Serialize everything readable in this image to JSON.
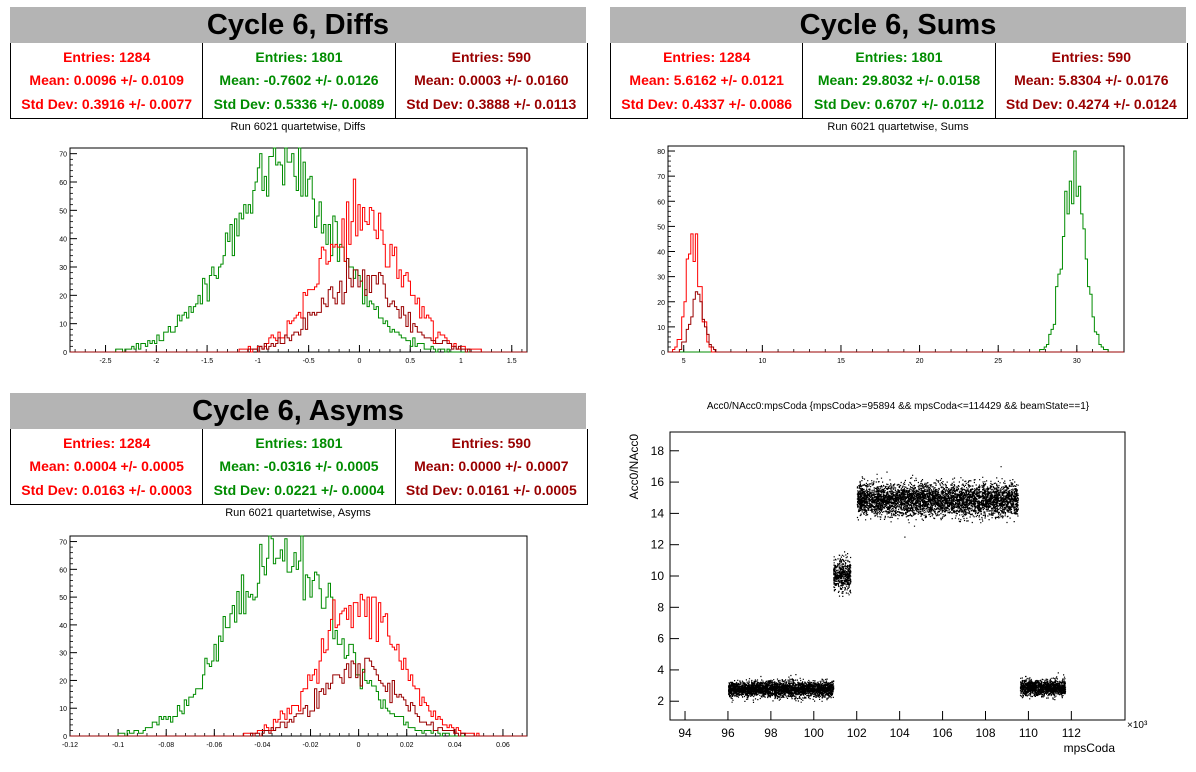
{
  "panels": {
    "diffs": {
      "title": "Cycle 6, Diffs",
      "subtitle": "Run 6021 quartetwise, Diffs",
      "stats": [
        {
          "entries": "Entries: 1284",
          "mean": "Mean: 0.0096 +/- 0.0109",
          "std": "Std Dev: 0.3916 +/- 0.0077",
          "color": "#ff0000"
        },
        {
          "entries": "Entries: 1801",
          "mean": "Mean: -0.7602 +/- 0.0126",
          "std": "Std Dev: 0.5336 +/- 0.0089",
          "color": "#008c00"
        },
        {
          "entries": "Entries: 590",
          "mean": "Mean: 0.0003 +/- 0.0160",
          "std": "Std Dev: 0.3888 +/- 0.0113",
          "color": "#990000"
        }
      ]
    },
    "sums": {
      "title": "Cycle 6, Sums",
      "subtitle": "Run 6021 quartetwise, Sums",
      "stats": [
        {
          "entries": "Entries: 1284",
          "mean": "Mean: 5.6162 +/- 0.0121",
          "std": "Std Dev: 0.4337 +/- 0.0086",
          "color": "#ff0000"
        },
        {
          "entries": "Entries: 1801",
          "mean": "Mean: 29.8032 +/- 0.0158",
          "std": "Std Dev: 0.6707 +/- 0.0112",
          "color": "#008c00"
        },
        {
          "entries": "Entries: 590",
          "mean": "Mean: 5.8304 +/- 0.0176",
          "std": "Std Dev: 0.4274 +/- 0.0124",
          "color": "#990000"
        }
      ]
    },
    "asyms": {
      "title": "Cycle 6, Asyms",
      "subtitle": "Run 6021 quartetwise, Asyms",
      "stats": [
        {
          "entries": "Entries: 1284",
          "mean": "Mean: 0.0004 +/- 0.0005",
          "std": "Std Dev: 0.0163 +/- 0.0003",
          "color": "#ff0000"
        },
        {
          "entries": "Entries: 1801",
          "mean": "Mean: -0.0316 +/- 0.0005",
          "std": "Std Dev: 0.0221 +/- 0.0004",
          "color": "#008c00"
        },
        {
          "entries": "Entries: 590",
          "mean": "Mean: 0.0000 +/- 0.0007",
          "std": "Std Dev: 0.0161 +/- 0.0005",
          "color": "#990000"
        }
      ]
    },
    "scatter": {
      "title": "Acc0/NAcc0:mpsCoda {mpsCoda>=95894 && mpsCoda<=114429 && beamState==1}"
    }
  },
  "chart_data": [
    {
      "type": "histogram",
      "title": "Run 6021 quartetwise, Diffs",
      "xlim": [
        -2.85,
        1.65
      ],
      "ylim": [
        0,
        72
      ],
      "xticks": [
        -2.5,
        -2,
        -1.5,
        -1,
        -0.5,
        0,
        0.5,
        1,
        1.5
      ],
      "yticks": [
        0,
        10,
        20,
        30,
        40,
        50,
        60,
        70
      ],
      "series": [
        {
          "color": "#008c00",
          "entries": 1801,
          "mean": -0.7602,
          "std": 0.5336,
          "peak": 68
        },
        {
          "color": "#ff0000",
          "entries": 1284,
          "mean": 0.0096,
          "std": 0.3916,
          "peak": 50
        },
        {
          "color": "#990000",
          "entries": 590,
          "mean": 0.0003,
          "std": 0.3888,
          "peak": 27
        }
      ]
    },
    {
      "type": "histogram",
      "title": "Run 6021 quartetwise, Sums",
      "xlim": [
        4.0,
        33.0
      ],
      "ylim": [
        0,
        82
      ],
      "xticks": [
        5,
        10,
        15,
        20,
        25,
        30
      ],
      "yticks": [
        0,
        10,
        20,
        30,
        40,
        50,
        60,
        70,
        80
      ],
      "series": [
        {
          "color": "#008c00",
          "entries": 1801,
          "mean": 29.8032,
          "std": 0.6707,
          "peak": 79
        },
        {
          "color": "#ff0000",
          "entries": 1284,
          "mean": 5.6162,
          "std": 0.4337,
          "peak": 49
        },
        {
          "color": "#990000",
          "entries": 590,
          "mean": 5.8304,
          "std": 0.4274,
          "peak": 22
        }
      ]
    },
    {
      "type": "histogram",
      "title": "Run 6021 quartetwise, Asyms",
      "xlim": [
        -0.12,
        0.07
      ],
      "ylim": [
        0,
        72
      ],
      "xticks": [
        -0.12,
        -0.1,
        -0.08,
        -0.06,
        -0.04,
        -0.02,
        0,
        0.02,
        0.04,
        0.06
      ],
      "yticks": [
        0,
        10,
        20,
        30,
        40,
        50,
        60,
        70
      ],
      "series": [
        {
          "color": "#008c00",
          "entries": 1801,
          "mean": -0.0316,
          "std": 0.0221,
          "peak": 70
        },
        {
          "color": "#ff0000",
          "entries": 1284,
          "mean": 0.0004,
          "std": 0.0163,
          "peak": 50
        },
        {
          "color": "#990000",
          "entries": 590,
          "mean": 0.0,
          "std": 0.0161,
          "peak": 26
        }
      ]
    },
    {
      "type": "scatter",
      "title": "Acc0/NAcc0:mpsCoda {mpsCoda>=95894 && mpsCoda<=114429 && beamState==1}",
      "xlabel": "mpsCoda",
      "ylabel": "Acc0/NAcc0",
      "x_multiplier": "×10³",
      "xlim": [
        93.3,
        114.5
      ],
      "ylim": [
        0.8,
        19.2
      ],
      "xticks": [
        94,
        96,
        98,
        100,
        102,
        104,
        106,
        108,
        110,
        112
      ],
      "yticks": [
        2,
        4,
        6,
        8,
        10,
        12,
        14,
        16,
        18
      ],
      "clusters": [
        {
          "x": [
            96.0,
            100.9
          ],
          "y_center": 2.8,
          "y_spread": 0.45
        },
        {
          "x": [
            100.9,
            101.7
          ],
          "y_center": 10.1,
          "y_spread": 0.9
        },
        {
          "x": [
            102.0,
            109.5
          ],
          "y_center": 14.9,
          "y_spread": 0.9
        },
        {
          "x": [
            109.6,
            111.7
          ],
          "y_center": 2.9,
          "y_spread": 0.45
        }
      ]
    }
  ]
}
